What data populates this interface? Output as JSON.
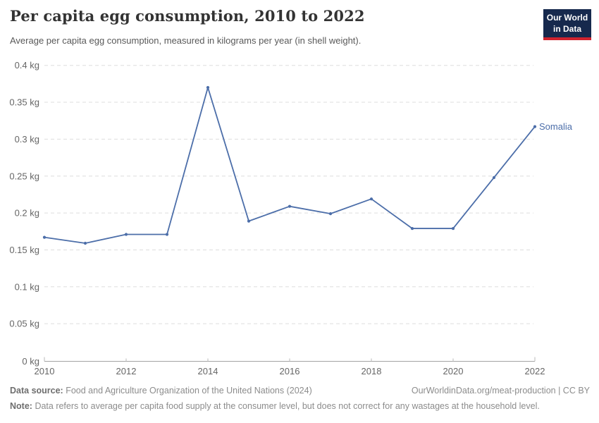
{
  "header": {
    "title": "Per capita egg consumption, 2010 to 2022",
    "subtitle": "Average per capita egg consumption, measured in kilograms per year (in shell weight).",
    "logo": {
      "line1": "Our World",
      "line2": "in Data",
      "bg_color": "#16294d",
      "bar_color": "#d0232e"
    }
  },
  "chart_data": {
    "type": "line",
    "title": "Per capita egg consumption, 2010 to 2022",
    "x": [
      2010,
      2011,
      2012,
      2013,
      2014,
      2015,
      2016,
      2017,
      2018,
      2019,
      2020,
      2021,
      2022
    ],
    "series": [
      {
        "name": "Somalia",
        "color": "#4c6ea9",
        "values": [
          0.167,
          0.159,
          0.171,
          0.171,
          0.37,
          0.189,
          0.209,
          0.199,
          0.219,
          0.179,
          0.179,
          0.248,
          0.317
        ]
      }
    ],
    "xlabel": "",
    "ylabel": "",
    "ylim": [
      0,
      0.4
    ],
    "yticks": [
      0,
      0.05,
      0.1,
      0.15,
      0.2,
      0.25,
      0.3,
      0.35,
      0.4
    ],
    "ytick_labels": [
      "0 kg",
      "0.05 kg",
      "0.1 kg",
      "0.15 kg",
      "0.2 kg",
      "0.25 kg",
      "0.3 kg",
      "0.35 kg",
      "0.4 kg"
    ],
    "xticks": [
      2010,
      2012,
      2014,
      2016,
      2018,
      2020,
      2022
    ],
    "xtick_labels": [
      "2010",
      "2012",
      "2014",
      "2016",
      "2018",
      "2020",
      "2022"
    ],
    "grid": "horizontal-dashed",
    "legend": "end-of-line-label",
    "grid_color": "#dedede",
    "axis_color": "#a3a3a3",
    "tick_label_color": "#666666"
  },
  "footer": {
    "source_label": "Data source:",
    "source_text": "Food and Agriculture Organization of the United Nations (2024)",
    "link_text": "OurWorldinData.org/meat-production | CC BY",
    "note_label": "Note:",
    "note_text": "Data refers to average per capita food supply at the consumer level, but does not correct for any wastages at the household level."
  }
}
